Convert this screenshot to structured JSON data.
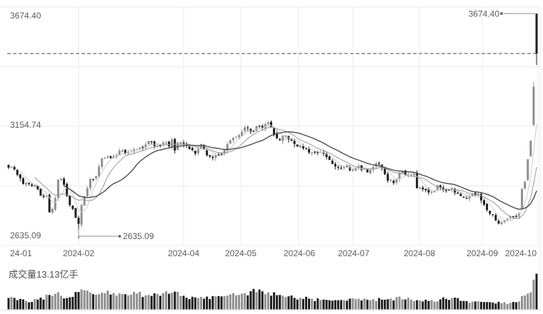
{
  "chart_data": {
    "type": "candlestick+volume",
    "candle_count": 182,
    "y_axis": {
      "labels": [
        "3674.40",
        "3154.74",
        "2635.09"
      ],
      "max": 3674.4,
      "mid": 3154.74,
      "min": 2635.09,
      "grid": "on"
    },
    "x_axis": {
      "labels": [
        "24-01",
        "2024-02",
        "2024-04",
        "2024-05",
        "2024-06",
        "2024-07",
        "2024-08",
        "2024-09",
        "2024-10"
      ]
    },
    "reference_line": {
      "style": "dashed",
      "value": 3489.78
    },
    "annotations": {
      "high": {
        "text": "3674.40",
        "value": 3674.4
      },
      "low": {
        "text": "2635.09",
        "value": 2635.09
      }
    },
    "volume": {
      "label": "成交量13.13亿手",
      "latest_yi_shou": 13.13,
      "max_yi_shou": 13.13
    },
    "series": {
      "close_keypoints": [
        [
          0,
          2962
        ],
        [
          1,
          2967
        ],
        [
          2,
          2954
        ],
        [
          3,
          2929
        ],
        [
          5,
          2887
        ],
        [
          8,
          2877
        ],
        [
          9,
          2881
        ],
        [
          11,
          2833
        ],
        [
          13,
          2832
        ],
        [
          14,
          2756
        ],
        [
          15,
          2771
        ],
        [
          16,
          2821
        ],
        [
          17,
          2906
        ],
        [
          18,
          2910
        ],
        [
          19,
          2883
        ],
        [
          20,
          2831
        ],
        [
          21,
          2789
        ],
        [
          22,
          2771
        ],
        [
          23,
          2730
        ],
        [
          24,
          2702
        ],
        [
          25,
          2789
        ],
        [
          26,
          2830
        ],
        [
          27,
          2866
        ],
        [
          28,
          2911
        ],
        [
          30,
          2923
        ],
        [
          32,
          3005
        ],
        [
          34,
          3014
        ],
        [
          36,
          3015
        ],
        [
          38,
          3040
        ],
        [
          40,
          3028
        ],
        [
          43,
          3046
        ],
        [
          46,
          3055
        ],
        [
          48,
          3085
        ],
        [
          51,
          3063
        ],
        [
          53,
          3078
        ],
        [
          55,
          3061
        ],
        [
          56,
          3091
        ],
        [
          57,
          3041
        ],
        [
          58,
          3077
        ],
        [
          60,
          3069
        ],
        [
          62,
          3048
        ],
        [
          64,
          3027
        ],
        [
          66,
          3071
        ],
        [
          68,
          3019
        ],
        [
          70,
          3007
        ],
        [
          72,
          3022
        ],
        [
          74,
          3045
        ],
        [
          76,
          3089
        ],
        [
          78,
          3104
        ],
        [
          79,
          3113
        ],
        [
          81,
          3148
        ],
        [
          83,
          3128
        ],
        [
          85,
          3154
        ],
        [
          87,
          3148
        ],
        [
          89,
          3171
        ],
        [
          91,
          3116
        ],
        [
          93,
          3089
        ],
        [
          95,
          3111
        ],
        [
          97,
          3087
        ],
        [
          98,
          3071
        ],
        [
          101,
          3051
        ],
        [
          104,
          3034
        ],
        [
          107,
          3033
        ],
        [
          110,
          2998
        ],
        [
          113,
          2963
        ],
        [
          116,
          2967
        ],
        [
          117,
          2950
        ],
        [
          120,
          2970
        ],
        [
          123,
          2940
        ],
        [
          126,
          2982
        ],
        [
          128,
          2962
        ],
        [
          130,
          2902
        ],
        [
          132,
          2891
        ],
        [
          134,
          2939
        ],
        [
          137,
          2933
        ],
        [
          139,
          2938
        ],
        [
          140,
          2867
        ],
        [
          142,
          2862
        ],
        [
          145,
          2850
        ],
        [
          147,
          2879
        ],
        [
          150,
          2855
        ],
        [
          152,
          2867
        ],
        [
          154,
          2842
        ],
        [
          157,
          2820
        ],
        [
          159,
          2842
        ],
        [
          161,
          2842
        ],
        [
          162,
          2811
        ],
        [
          164,
          2766
        ],
        [
          166,
          2745
        ],
        [
          168,
          2704
        ],
        [
          170,
          2717
        ],
        [
          172,
          2736
        ],
        [
          174,
          2737
        ],
        [
          175,
          2749
        ],
        [
          176,
          2863
        ],
        [
          177,
          2896
        ],
        [
          178,
          3001
        ],
        [
          179,
          3088
        ],
        [
          180,
          3336.5
        ],
        [
          181,
          3489.78
        ]
      ],
      "explicit_candles": {
        "24": [
          2730,
          2740,
          2635.09,
          2702.19
        ],
        "176": [
          2770,
          2867,
          2767,
          2863.13
        ],
        "178": [
          2905,
          3001,
          2900,
          3000.95
        ],
        "179": [
          3015,
          3088,
          3010,
          3087.53
        ],
        "180": [
          3160,
          3358,
          3153,
          3336.5
        ],
        "181": [
          3674.4,
          3674.4,
          3436.39,
          3489.78
        ]
      },
      "volume_keypoints": [
        [
          0,
          4.2
        ],
        [
          3,
          3.4
        ],
        [
          6,
          3.1
        ],
        [
          10,
          3.6
        ],
        [
          14,
          5.3
        ],
        [
          16,
          5.7
        ],
        [
          18,
          5.0
        ],
        [
          20,
          4.2
        ],
        [
          22,
          4.6
        ],
        [
          24,
          6.4
        ],
        [
          26,
          7.0
        ],
        [
          28,
          6.2
        ],
        [
          31,
          5.6
        ],
        [
          34,
          6.9
        ],
        [
          36,
          6.0
        ],
        [
          40,
          5.6
        ],
        [
          44,
          5.8
        ],
        [
          48,
          5.3
        ],
        [
          52,
          5.0
        ],
        [
          56,
          6.1
        ],
        [
          60,
          5.0
        ],
        [
          64,
          4.4
        ],
        [
          68,
          4.7
        ],
        [
          72,
          4.9
        ],
        [
          76,
          5.5
        ],
        [
          80,
          5.8
        ],
        [
          83,
          6.7
        ],
        [
          86,
          7.3
        ],
        [
          89,
          6.2
        ],
        [
          93,
          5.3
        ],
        [
          96,
          4.8
        ],
        [
          100,
          4.2
        ],
        [
          104,
          3.9
        ],
        [
          108,
          3.6
        ],
        [
          112,
          3.4
        ],
        [
          116,
          3.2
        ],
        [
          120,
          3.9
        ],
        [
          124,
          3.4
        ],
        [
          128,
          3.6
        ],
        [
          132,
          3.3
        ],
        [
          134,
          4.7
        ],
        [
          138,
          3.6
        ],
        [
          141,
          3.3
        ],
        [
          144,
          3.1
        ],
        [
          148,
          3.7
        ],
        [
          152,
          4.2
        ],
        [
          156,
          3.1
        ],
        [
          160,
          2.9
        ],
        [
          163,
          2.7
        ],
        [
          166,
          2.5
        ],
        [
          169,
          2.3
        ],
        [
          172,
          2.4
        ],
        [
          174,
          2.6
        ],
        [
          175,
          2.9
        ],
        [
          176,
          4.9
        ],
        [
          177,
          5.1
        ],
        [
          178,
          5.8
        ],
        [
          179,
          6.3
        ],
        [
          180,
          10.9
        ],
        [
          181,
          13.13
        ]
      ]
    },
    "moving_averages": [
      "MA5",
      "MA10",
      "MA20"
    ],
    "colors": {
      "background": "#ffffff",
      "up_candle": "#8f8f8f",
      "down_candle": "#1f1f1f",
      "ma5": "#cccccc",
      "ma10": "#999999",
      "ma20": "#4d4d4d",
      "grid": "#ebebeb",
      "border": "#e2e2e2",
      "text": "#5c5c5c",
      "dashed_line": "#4a4a4a",
      "annotation": "#808080"
    }
  }
}
